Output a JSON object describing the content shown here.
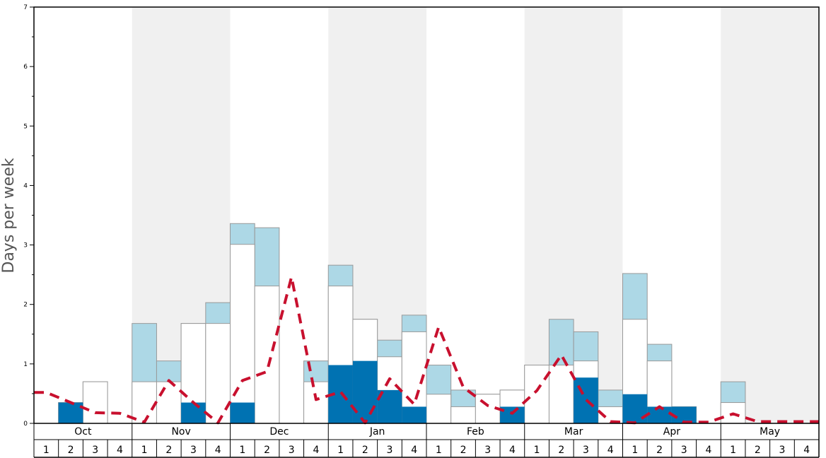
{
  "chart_data": {
    "type": "bar",
    "ylabel": "Days per week",
    "ylim": [
      0,
      7
    ],
    "yticks": [
      "0",
      "1",
      "2",
      "3",
      "4",
      "5",
      "6",
      "7"
    ],
    "months": [
      "Oct",
      "Nov",
      "Dec",
      "Jan",
      "Feb",
      "Mar",
      "Apr",
      "May"
    ],
    "week_labels": [
      "1",
      "2",
      "3",
      "4"
    ],
    "colors": {
      "dark": "#0072b2",
      "white": "#ffffff",
      "light": "#add8e6",
      "line": "#c8102e",
      "shade": "#f0f0f0",
      "bar_edge": "#999999"
    },
    "series": [
      {
        "values": [
          0,
          0.35,
          0,
          0,
          0,
          0,
          0.35,
          0,
          0.35,
          0,
          0,
          0,
          0.98,
          1.05,
          0.56,
          0.28,
          0,
          0,
          0,
          0.28,
          0,
          0,
          0.77,
          0,
          0.49,
          0.28,
          0.28,
          0,
          0,
          0,
          0,
          0
        ]
      },
      {
        "values": [
          0,
          0.35,
          0.7,
          0,
          0.7,
          0.7,
          1.68,
          1.68,
          3.01,
          2.31,
          0,
          0.7,
          2.31,
          1.75,
          1.12,
          1.54,
          0.49,
          0.28,
          0.49,
          0.56,
          0.98,
          0.98,
          1.05,
          0.28,
          1.75,
          1.05,
          0.28,
          0,
          0.35,
          0,
          0,
          0
        ]
      },
      {
        "values": [
          0,
          0.35,
          0.7,
          0,
          1.68,
          1.05,
          1.68,
          2.03,
          3.36,
          3.29,
          0,
          1.05,
          2.66,
          1.75,
          1.4,
          1.82,
          0.98,
          0.56,
          0.49,
          0.56,
          0.98,
          1.75,
          1.54,
          0.56,
          2.52,
          1.33,
          0.28,
          0,
          0.7,
          0,
          0,
          0
        ]
      },
      {
        "values": [
          0.52,
          0.35,
          0.18,
          0.17,
          0.02,
          0.72,
          0.35,
          0.01,
          0.72,
          0.87,
          2.46,
          0.4,
          0.53,
          0.01,
          0.75,
          0.32,
          1.62,
          0.61,
          0.3,
          0.17,
          0.55,
          1.15,
          0.4,
          0.03,
          0.01,
          0.28,
          0.02,
          0.02,
          0.16,
          0.03,
          0.03,
          0.03
        ]
      }
    ]
  }
}
